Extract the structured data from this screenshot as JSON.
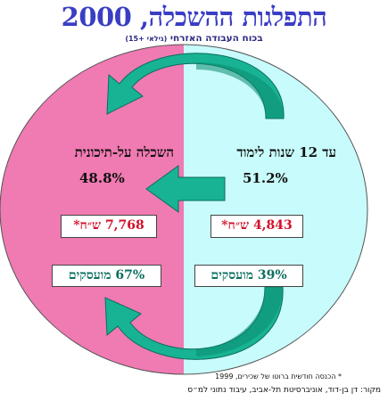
{
  "title": "התפלגות ההשכלה, 2000",
  "subtitle": {
    "main": "בכוח העבודה האזרחי",
    "age_note": "(גילאי +15)"
  },
  "groups": {
    "right": {
      "label": "עד 12 שנות לימוד",
      "share": "51.2%",
      "income": "4,843 ש״ח*",
      "employed": "39% מועסקים"
    },
    "left": {
      "label": "השכלה על-תיכונית",
      "share": "48.8%",
      "income": "7,768 ש״ח*",
      "employed": "67% מועסקים"
    }
  },
  "footnote": "* הכנסה חודשית ברוטו של שכירים, 1999",
  "source": "מקור: דן בן-דוד, אוניברסיטת תל-אביב, עיבוד נתוני למ״ס",
  "colors": {
    "title": "#3a3ec4",
    "left_half": "#f07ab2",
    "right_half": "#c8fbfb",
    "arrow": "#17b394",
    "income_text": "#d0102a",
    "employed_text": "#0a7060"
  },
  "icons": [
    "curved-arrow-top",
    "straight-arrow-left",
    "curved-arrow-bottom"
  ]
}
